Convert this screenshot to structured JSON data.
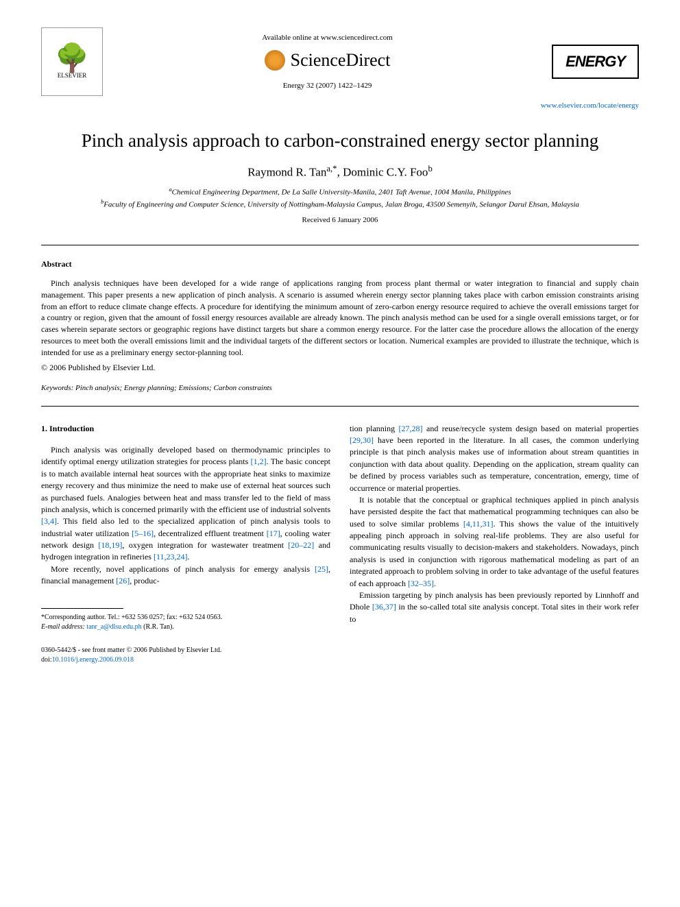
{
  "header": {
    "available_text": "Available online at www.sciencedirect.com",
    "publisher_logo": "ELSEVIER",
    "platform_name": "ScienceDirect",
    "journal_ref": "Energy 32 (2007) 1422–1429",
    "journal_name": "ENERGY",
    "journal_url": "www.elsevier.com/locate/energy"
  },
  "paper": {
    "title": "Pinch analysis approach to carbon-constrained energy sector planning",
    "author1": "Raymond R. Tan",
    "author1_marks": "a,*",
    "author2": "Dominic C.Y. Foo",
    "author2_marks": "b",
    "affiliation_a": "Chemical Engineering Department, De La Salle University-Manila, 2401 Taft Avenue, 1004 Manila, Philippines",
    "affiliation_b": "Faculty of Engineering and Computer Science, University of Nottingham-Malaysia Campus, Jalan Broga, 43500 Semenyih, Selangor Darul Ehsan, Malaysia",
    "received": "Received 6 January 2006"
  },
  "abstract": {
    "heading": "Abstract",
    "text": "Pinch analysis techniques have been developed for a wide range of applications ranging from process plant thermal or water integration to financial and supply chain management. This paper presents a new application of pinch analysis. A scenario is assumed wherein energy sector planning takes place with carbon emission constraints arising from an effort to reduce climate change effects. A procedure for identifying the minimum amount of zero-carbon energy resource required to achieve the overall emissions target for a country or region, given that the amount of fossil energy resources available are already known. The pinch analysis method can be used for a single overall emissions target, or for cases wherein separate sectors or geographic regions have distinct targets but share a common energy resource. For the latter case the procedure allows the allocation of the energy resources to meet both the overall emissions limit and the individual targets of the different sectors or location. Numerical examples are provided to illustrate the technique, which is intended for use as a preliminary energy sector-planning tool.",
    "copyright": "© 2006 Published by Elsevier Ltd.",
    "keywords_label": "Keywords:",
    "keywords": "Pinch analysis; Energy planning; Emissions; Carbon constraints"
  },
  "body": {
    "section_heading": "1. Introduction",
    "col1_p1_a": "Pinch analysis was originally developed based on thermodynamic principles to identify optimal energy utilization strategies for process plants ",
    "col1_p1_ref1": "[1,2]",
    "col1_p1_b": ". The basic concept is to match available internal heat sources with the appropriate heat sinks to maximize energy recovery and thus minimize the need to make use of external heat sources such as purchased fuels. Analogies between heat and mass transfer led to the field of mass pinch analysis, which is concerned primarily with the efficient use of industrial solvents ",
    "col1_p1_ref2": "[3,4]",
    "col1_p1_c": ". This field also led to the specialized application of pinch analysis tools to industrial water utilization ",
    "col1_p1_ref3": "[5–16]",
    "col1_p1_d": ", decentralized effluent treatment ",
    "col1_p1_ref4": "[17]",
    "col1_p1_e": ", cooling water network design ",
    "col1_p1_ref5": "[18,19]",
    "col1_p1_f": ", oxygen integration for wastewater treatment ",
    "col1_p1_ref6": "[20–22]",
    "col1_p1_g": " and hydrogen integration in refineries ",
    "col1_p1_ref7": "[11,23,24]",
    "col1_p1_h": ".",
    "col1_p2_a": "More recently, novel applications of pinch analysis for emergy analysis ",
    "col1_p2_ref1": "[25]",
    "col1_p2_b": ", financial management ",
    "col1_p2_ref2": "[26]",
    "col1_p2_c": ", produc-",
    "col2_p1_a": "tion planning ",
    "col2_p1_ref1": "[27,28]",
    "col2_p1_b": " and reuse/recycle system design based on material properties ",
    "col2_p1_ref2": "[29,30]",
    "col2_p1_c": " have been reported in the literature. In all cases, the common underlying principle is that pinch analysis makes use of information about stream quantities in conjunction with data about quality. Depending on the application, stream quality can be defined by process variables such as temperature, concentration, emergy, time of occurrence or material properties.",
    "col2_p2_a": "It is notable that the conceptual or graphical techniques applied in pinch analysis have persisted despite the fact that mathematical programming techniques can also be used to solve similar problems ",
    "col2_p2_ref1": "[4,11,31]",
    "col2_p2_b": ". This shows the value of the intuitively appealing pinch approach in solving real-life problems. They are also useful for communicating results visually to decision-makers and stakeholders. Nowadays, pinch analysis is used in conjunction with rigorous mathematical modeling as part of an integrated approach to problem solving in order to take advantage of the useful features of each approach ",
    "col2_p2_ref2": "[32–35]",
    "col2_p2_c": ".",
    "col2_p3_a": "Emission targeting by pinch analysis has been previously reported by Linnhoff and Dhole ",
    "col2_p3_ref1": "[36,37]",
    "col2_p3_b": " in the so-called total site analysis concept. Total sites in their work refer to"
  },
  "footnote": {
    "corresponding": "*Corresponding author. Tel.: +632 536 0257; fax: +632 524 0563.",
    "email_label": "E-mail address:",
    "email": "tanr_a@dlsu.edu.ph",
    "email_name": "(R.R. Tan)."
  },
  "footer": {
    "line1": "0360-5442/$ - see front matter © 2006 Published by Elsevier Ltd.",
    "doi_label": "doi:",
    "doi": "10.1016/j.energy.2006.09.018"
  },
  "colors": {
    "link": "#0066cc",
    "text": "#000000",
    "background": "#ffffff"
  }
}
